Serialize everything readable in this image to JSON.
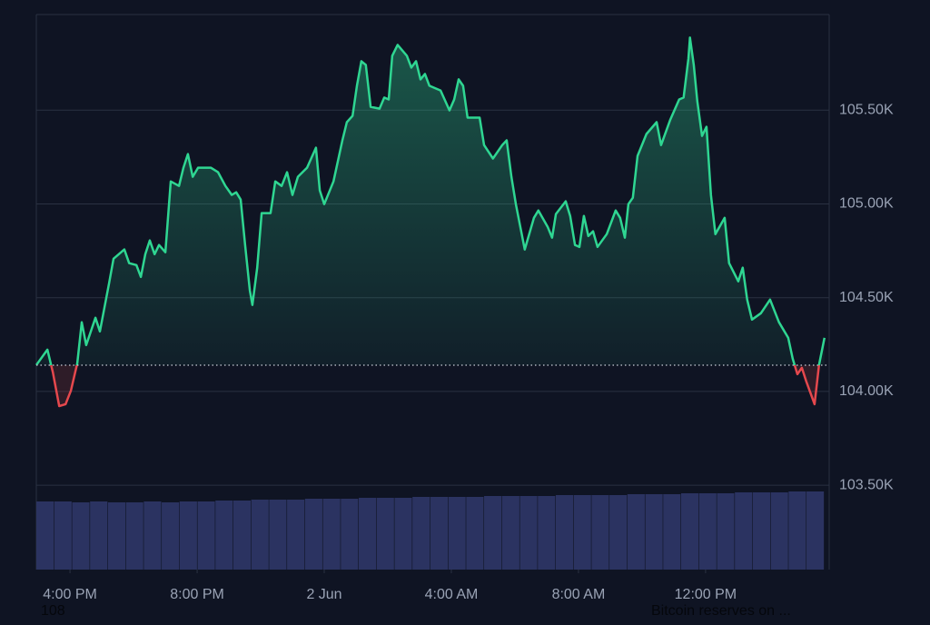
{
  "chart_data": {
    "type": "area",
    "x": [
      14.94,
      15.29,
      15.46,
      15.66,
      15.86,
      16.03,
      16.23,
      16.37,
      16.51,
      16.8,
      16.94,
      17.23,
      17.37,
      17.71,
      17.86,
      18.09,
      18.23,
      18.37,
      18.51,
      18.66,
      18.8,
      19.0,
      19.17,
      19.43,
      19.57,
      19.71,
      19.86,
      20.03,
      20.43,
      20.66,
      20.89,
      21.09,
      21.23,
      21.37,
      21.51,
      21.66,
      21.74,
      21.89,
      22.03,
      22.31,
      22.46,
      22.66,
      22.83,
      23.0,
      23.17,
      23.46,
      23.74,
      23.86,
      24.0,
      24.29,
      24.57,
      24.71,
      24.89,
      25.03,
      25.17,
      25.31,
      25.46,
      25.74,
      25.89,
      26.03,
      26.14,
      26.31,
      26.6,
      26.74,
      26.89,
      27.03,
      27.17,
      27.31,
      27.66,
      27.94,
      28.09,
      28.23,
      28.37,
      28.51,
      28.89,
      29.03,
      29.31,
      29.6,
      29.74,
      29.89,
      30.03,
      30.17,
      30.31,
      30.6,
      30.74,
      31.03,
      31.17,
      31.29,
      31.6,
      31.74,
      31.89,
      32.03,
      32.17,
      32.31,
      32.46,
      32.6,
      32.89,
      33.17,
      33.31,
      33.46,
      33.57,
      33.71,
      33.86,
      34.14,
      34.46,
      34.6,
      34.89,
      35.17,
      35.31,
      35.46,
      35.51,
      35.63,
      35.74,
      35.89,
      36.03,
      36.17,
      36.31,
      36.6,
      36.74,
      37.03,
      37.17,
      37.31,
      37.46,
      37.74,
      38.03,
      38.31,
      38.6,
      38.74,
      38.89,
      39.03,
      39.17,
      39.43,
      39.57,
      39.74
    ],
    "series": [
      {
        "color": "#2fd692",
        "below_color": "#e5484d",
        "values": [
          104141,
          104223,
          104102,
          103922,
          103932,
          104005,
          104150,
          104369,
          104247,
          104393,
          104320,
          104577,
          104708,
          104757,
          104684,
          104674,
          104611,
          104732,
          104805,
          104732,
          104781,
          104742,
          105120,
          105096,
          105193,
          105266,
          105145,
          105193,
          105193,
          105169,
          105096,
          105048,
          105062,
          105023,
          104781,
          104538,
          104461,
          104660,
          104951,
          104951,
          105120,
          105096,
          105169,
          105048,
          105145,
          105193,
          105300,
          105072,
          104999,
          105120,
          105339,
          105436,
          105470,
          105630,
          105761,
          105741,
          105518,
          105508,
          105567,
          105557,
          105790,
          105848,
          105790,
          105727,
          105761,
          105664,
          105693,
          105630,
          105605,
          105499,
          105557,
          105664,
          105630,
          105460,
          105460,
          105314,
          105242,
          105314,
          105339,
          105145,
          104999,
          104878,
          104757,
          104926,
          104965,
          104878,
          104820,
          104946,
          105014,
          104936,
          104781,
          104771,
          104936,
          104829,
          104854,
          104771,
          104839,
          104965,
          104926,
          104820,
          104999,
          105033,
          105256,
          105373,
          105436,
          105314,
          105450,
          105557,
          105567,
          105775,
          105887,
          105741,
          105547,
          105363,
          105411,
          105048,
          104839,
          104926,
          104684,
          104587,
          104660,
          104490,
          104383,
          104417,
          104490,
          104369,
          104286,
          104175,
          104092,
          104126,
          104053,
          103932,
          104141,
          104286
        ]
      }
    ],
    "baseline": 104140,
    "volume": {
      "color": "#2b3361",
      "values": [
        75,
        75,
        74,
        75,
        74,
        74,
        75,
        74,
        75,
        75,
        76,
        76,
        77,
        77,
        77,
        78,
        78,
        78,
        79,
        79,
        79,
        80,
        80,
        80,
        80,
        81,
        81,
        81,
        81,
        82,
        82,
        82,
        82,
        83,
        83,
        83,
        84,
        84,
        84,
        85,
        85,
        85,
        86,
        86
      ]
    },
    "xlim": [
      14.94,
      39.89
    ],
    "xticks": [
      {
        "value": 16,
        "label": "4:00 PM"
      },
      {
        "value": 20,
        "label": "8:00 PM"
      },
      {
        "value": 24,
        "label": "2 Jun"
      },
      {
        "value": 28,
        "label": "4:00 AM"
      },
      {
        "value": 32,
        "label": "8:00 AM"
      },
      {
        "value": 36,
        "label": "12:00 PM"
      }
    ],
    "ylim": [
      103050,
      106010
    ],
    "yticks": [
      {
        "value": 103500,
        "label": "103.50K"
      },
      {
        "value": 104000,
        "label": "104.00K"
      },
      {
        "value": 104500,
        "label": "104.50K"
      },
      {
        "value": 105000,
        "label": "105.00K"
      },
      {
        "value": 105500,
        "label": "105.50K"
      }
    ],
    "grid": true
  },
  "footer": {
    "left": "108",
    "right": "Bitcoin reserves on ..."
  }
}
